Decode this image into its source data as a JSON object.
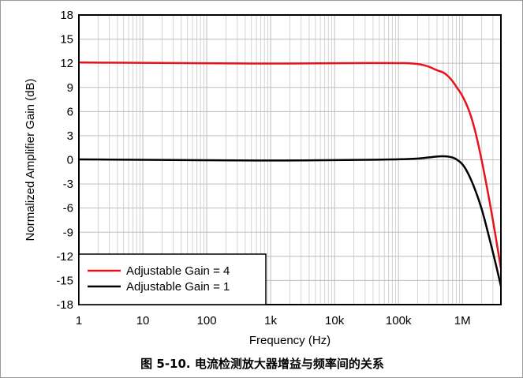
{
  "caption": "图 5-10. 电流检测放大器增益与频率间的关系",
  "chart_data": {
    "type": "line",
    "xlabel": "Frequency (Hz)",
    "ylabel": "Normalized Amplifier Gain (dB)",
    "x_scale": "log",
    "xlim": [
      1,
      4000000
    ],
    "ylim": [
      -18,
      18
    ],
    "grid": true,
    "legend_position": "bottom-left",
    "x_ticks": [
      1,
      10,
      100,
      1000,
      10000,
      100000,
      1000000
    ],
    "x_tick_labels": [
      "1",
      "10",
      "100",
      "1k",
      "10k",
      "100k",
      "1M"
    ],
    "y_ticks": [
      -18,
      -15,
      -12,
      -9,
      -6,
      -3,
      0,
      3,
      6,
      9,
      12,
      15,
      18
    ],
    "y_tick_labels": [
      "-18",
      "-15",
      "-12",
      "-9",
      "-6",
      "-3",
      "0",
      "3",
      "6",
      "9",
      "12",
      "15",
      "18"
    ],
    "series": [
      {
        "name": "Adjustable Gain = 4",
        "color": "#e8121b",
        "points": [
          [
            1,
            12.1
          ],
          [
            10,
            12.05
          ],
          [
            100,
            12.0
          ],
          [
            1000,
            11.95
          ],
          [
            10000,
            12.0
          ],
          [
            100000,
            12.05
          ],
          [
            200000,
            11.95
          ],
          [
            300000,
            11.6
          ],
          [
            400000,
            11.1
          ],
          [
            500000,
            10.9
          ],
          [
            600000,
            10.4
          ],
          [
            700000,
            9.8
          ],
          [
            800000,
            9.1
          ],
          [
            1000000,
            8.0
          ],
          [
            1300000,
            6.0
          ],
          [
            1600000,
            3.5
          ],
          [
            2000000,
            0.0
          ],
          [
            2500000,
            -4.0
          ],
          [
            3000000,
            -7.5
          ],
          [
            3500000,
            -10.7
          ],
          [
            4000000,
            -13.5
          ]
        ]
      },
      {
        "name": "Adjustable Gain = 1",
        "color": "#000000",
        "points": [
          [
            1,
            0.05
          ],
          [
            10,
            0.0
          ],
          [
            100,
            -0.05
          ],
          [
            1000,
            -0.1
          ],
          [
            10000,
            -0.05
          ],
          [
            100000,
            0.05
          ],
          [
            200000,
            0.15
          ],
          [
            300000,
            0.3
          ],
          [
            400000,
            0.42
          ],
          [
            500000,
            0.45
          ],
          [
            600000,
            0.4
          ],
          [
            700000,
            0.3
          ],
          [
            800000,
            0.1
          ],
          [
            1000000,
            -0.5
          ],
          [
            1200000,
            -1.5
          ],
          [
            1500000,
            -3.2
          ],
          [
            2000000,
            -6.0
          ],
          [
            2500000,
            -9.0
          ],
          [
            3000000,
            -11.5
          ],
          [
            3500000,
            -13.7
          ],
          [
            4000000,
            -15.7
          ]
        ]
      }
    ]
  }
}
